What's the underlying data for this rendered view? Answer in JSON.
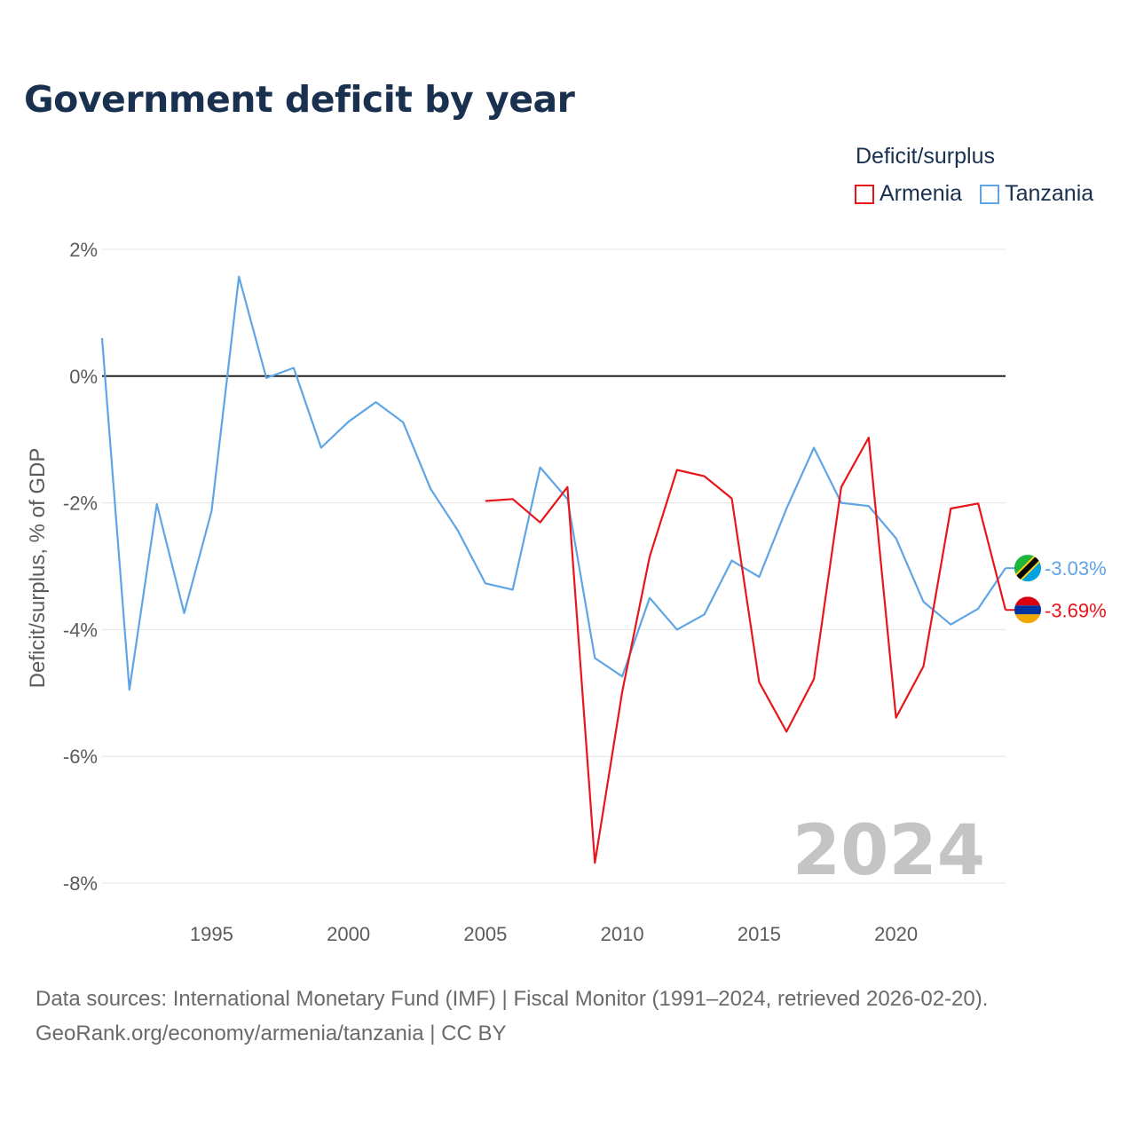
{
  "header": {
    "title": "Government deficit by year"
  },
  "legend": {
    "title": "Deficit/surplus",
    "items": [
      {
        "name": "Armenia",
        "color": "#e8151b"
      },
      {
        "name": "Tanzania",
        "color": "#5fa4e4"
      }
    ]
  },
  "chart_data": {
    "type": "line",
    "title": "Government deficit by year",
    "xlabel": "",
    "ylabel": "Deficit/surplus, % of GDP",
    "xlim": [
      1991,
      2024
    ],
    "ylim": [
      -8,
      2
    ],
    "yticks": [
      2,
      0,
      -2,
      -4,
      -6,
      -8
    ],
    "ytick_labels": [
      "2%",
      "0%",
      "-2%",
      "-4%",
      "-6%",
      "-8%"
    ],
    "xticks": [
      1995,
      2000,
      2005,
      2010,
      2015,
      2020
    ],
    "xtick_labels": [
      "1995",
      "2000",
      "2005",
      "2010",
      "2015",
      "2020"
    ],
    "zero_line": true,
    "year_watermark": "2024",
    "series": [
      {
        "name": "Armenia",
        "color": "#e8151b",
        "end_label": "-3.69%",
        "flag": "armenia-flag-icon",
        "x": [
          2005,
          2006,
          2007,
          2008,
          2009,
          2010,
          2011,
          2012,
          2013,
          2014,
          2015,
          2016,
          2017,
          2018,
          2019,
          2020,
          2021,
          2022,
          2023,
          2024
        ],
        "values": [
          -1.97,
          -1.94,
          -2.31,
          -1.75,
          -7.68,
          -4.98,
          -2.85,
          -1.48,
          -1.58,
          -1.93,
          -4.83,
          -5.61,
          -4.78,
          -1.75,
          -0.97,
          -5.39,
          -4.58,
          -2.09,
          -2.01,
          -3.69
        ]
      },
      {
        "name": "Tanzania",
        "color": "#5fa4e4",
        "end_label": "-3.03%",
        "flag": "tanzania-flag-icon",
        "x": [
          1991,
          1992,
          1993,
          1994,
          1995,
          1996,
          1997,
          1998,
          1999,
          2000,
          2001,
          2002,
          2003,
          2004,
          2005,
          2006,
          2007,
          2008,
          2009,
          2010,
          2011,
          2012,
          2013,
          2014,
          2015,
          2016,
          2017,
          2018,
          2019,
          2020,
          2021,
          2022,
          2023,
          2024
        ],
        "values": [
          0.6,
          -4.95,
          -2.02,
          -3.74,
          -2.13,
          1.57,
          -0.03,
          0.13,
          -1.13,
          -0.72,
          -0.41,
          -0.73,
          -1.78,
          -2.44,
          -3.27,
          -3.37,
          -1.44,
          -1.94,
          -4.45,
          -4.74,
          -3.5,
          -4.0,
          -3.76,
          -2.91,
          -3.17,
          -2.09,
          -1.13,
          -2.0,
          -2.05,
          -2.56,
          -3.56,
          -3.92,
          -3.67,
          -3.03
        ]
      }
    ]
  },
  "footer": {
    "source_line1": "Data sources: International Monetary Fund (IMF) | Fiscal Monitor (1991–2024, retrieved 2026-02-20).",
    "source_line2": "GeoRank.org/economy/armenia/tanzania | CC BY"
  }
}
